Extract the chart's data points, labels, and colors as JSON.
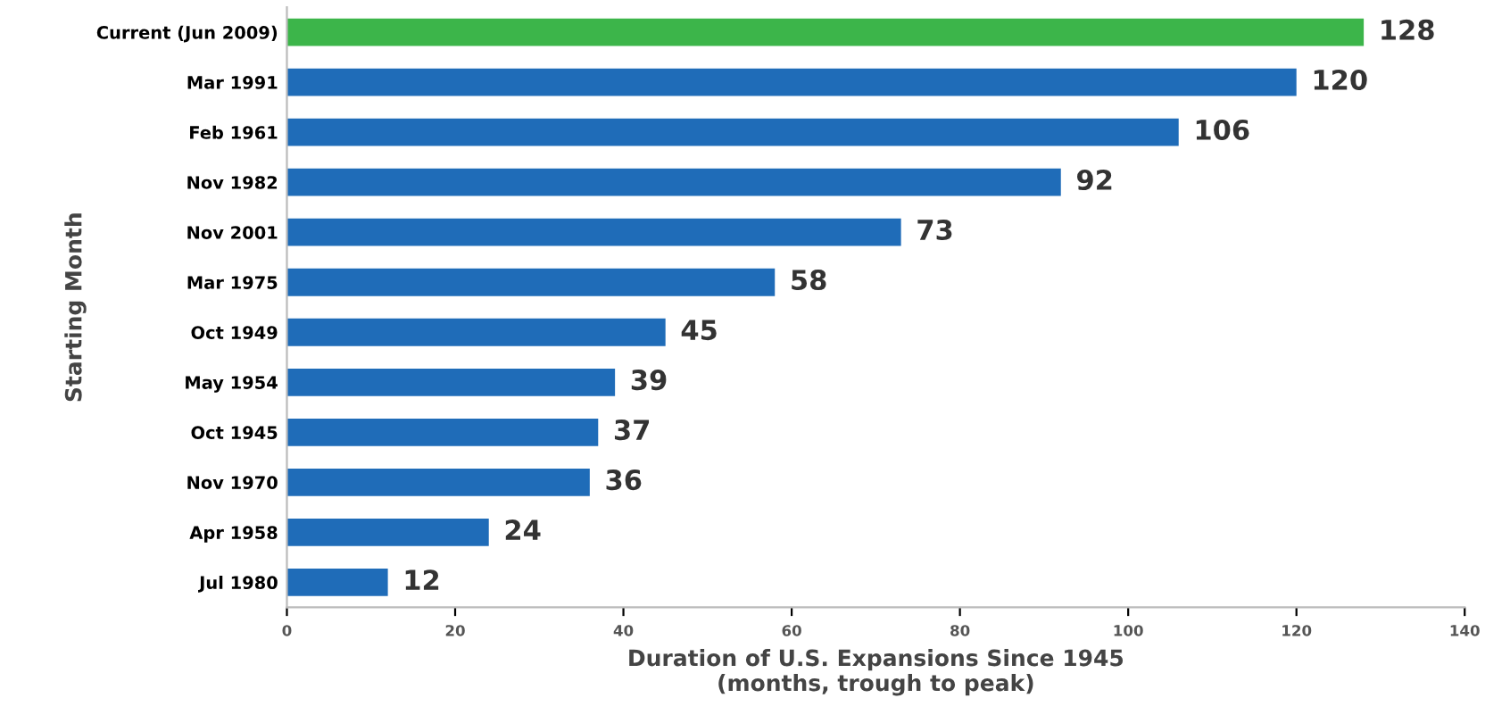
{
  "chart_data": {
    "type": "bar",
    "orientation": "horizontal",
    "xlabel": "Duration of U.S. Expansions Since 1945\n(months, trough to peak)",
    "ylabel": "Starting Month",
    "categories": [
      "Current (Jun 2009)",
      "Mar 1991",
      "Feb 1961",
      "Nov 1982",
      "Nov 2001",
      "Mar 1975",
      "Oct 1949",
      "May 1954",
      "Oct 1945",
      "Nov 1970",
      "Apr 1958",
      "Jul 1980"
    ],
    "values": [
      128,
      120,
      106,
      92,
      73,
      58,
      45,
      39,
      37,
      36,
      24,
      12
    ],
    "colors": [
      "#3cb54a",
      "#1f6cb8",
      "#1f6cb8",
      "#1f6cb8",
      "#1f6cb8",
      "#1f6cb8",
      "#1f6cb8",
      "#1f6cb8",
      "#1f6cb8",
      "#1f6cb8",
      "#1f6cb8",
      "#1f6cb8"
    ],
    "xlim": [
      0,
      140
    ],
    "xticks": [
      0,
      20,
      40,
      60,
      80,
      100,
      120,
      140
    ],
    "data_labels": true,
    "grid": false,
    "legend": false
  }
}
